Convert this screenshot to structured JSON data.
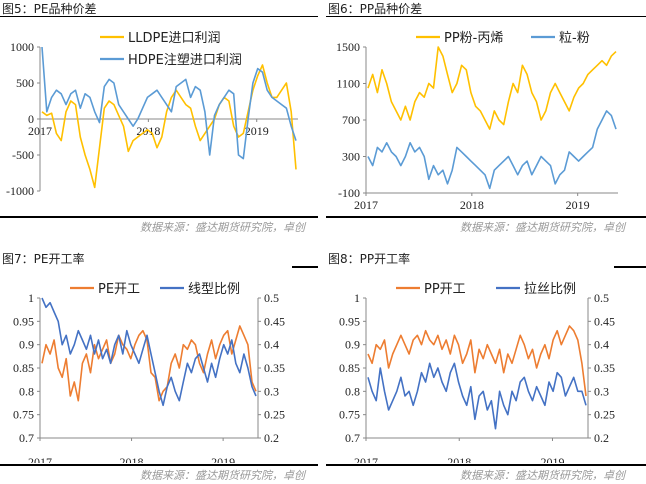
{
  "panels": [
    {
      "id": "p1",
      "title": "图5：PE品种价差",
      "source": "数据来源：盛达期货研究院，卓创",
      "chart_data": {
        "type": "line",
        "ylim": [
          -1000,
          1000
        ],
        "yticks": [
          -1000,
          -500,
          0,
          500,
          1000
        ],
        "years": [
          "2017",
          "2018",
          "2019"
        ],
        "series": [
          {
            "name": "LLDPE进口利润",
            "color": "#FFC000",
            "values": [
              100,
              50,
              80,
              -200,
              -300,
              100,
              250,
              200,
              -250,
              -500,
              -700,
              -950,
              -400,
              150,
              250,
              200,
              50,
              -100,
              -450,
              -300,
              -250,
              -200,
              -150,
              -200,
              -400,
              -250,
              100,
              300,
              400,
              300,
              200,
              150,
              -100,
              -300,
              -200,
              -100,
              0,
              200,
              300,
              250,
              -100,
              -250,
              -200,
              100,
              400,
              600,
              750,
              500,
              300,
              300,
              400,
              500,
              100,
              -700
            ]
          },
          {
            "name": "HDPE注塑进口利润",
            "color": "#5B9BD5",
            "values": [
              1000,
              100,
              300,
              400,
              350,
              200,
              350,
              400,
              150,
              350,
              300,
              100,
              -50,
              450,
              550,
              500,
              200,
              100,
              0,
              -100,
              0,
              150,
              300,
              350,
              400,
              300,
              200,
              100,
              450,
              500,
              550,
              300,
              450,
              400,
              100,
              -500,
              50,
              200,
              300,
              400,
              350,
              -500,
              -550,
              0,
              500,
              700,
              650,
              400,
              300,
              250,
              200,
              150,
              -100,
              -300
            ]
          }
        ]
      }
    },
    {
      "id": "p2",
      "title": "图6：PP品种价差",
      "source": "数据来源：盛达期货研究院，卓创",
      "chart_data": {
        "type": "line",
        "ylim": [
          -100,
          1500
        ],
        "yticks": [
          -100,
          300,
          700,
          1100,
          1500
        ],
        "years": [
          "2017",
          "2018",
          "2019"
        ],
        "series": [
          {
            "name": "PP粉-丙烯",
            "color": "#FFC000",
            "values": [
              1050,
              1200,
              1000,
              1250,
              1100,
              900,
              800,
              700,
              850,
              700,
              900,
              1000,
              950,
              1100,
              1050,
              1500,
              1400,
              1200,
              1000,
              1100,
              1300,
              1250,
              1000,
              850,
              800,
              700,
              600,
              800,
              700,
              650,
              900,
              1100,
              1000,
              1300,
              1200,
              1000,
              900,
              700,
              800,
              1000,
              1100,
              1000,
              900,
              800,
              950,
              1050,
              1100,
              1200,
              1250,
              1300,
              1350,
              1300,
              1400,
              1450
            ]
          },
          {
            "name": "粒-粉",
            "color": "#5B9BD5",
            "values": [
              300,
              200,
              400,
              350,
              450,
              350,
              300,
              200,
              300,
              450,
              350,
              400,
              300,
              50,
              200,
              100,
              150,
              0,
              150,
              400,
              350,
              300,
              250,
              200,
              150,
              100,
              -50,
              150,
              200,
              250,
              300,
              200,
              100,
              200,
              250,
              100,
              200,
              300,
              250,
              200,
              0,
              100,
              150,
              350,
              300,
              250,
              300,
              350,
              400,
              600,
              700,
              800,
              750,
              600
            ]
          }
        ]
      }
    },
    {
      "id": "p3",
      "title": "图7：PE开工率",
      "source": "数据来源：盛达期货研究院，卓创",
      "chart_data": {
        "type": "line",
        "ylim": [
          0.7,
          1
        ],
        "yticks": [
          0.7,
          0.75,
          0.8,
          0.85,
          0.9,
          0.95,
          1
        ],
        "y2lim": [
          0.2,
          0.5
        ],
        "y2ticks": [
          0.2,
          0.25,
          0.3,
          0.35,
          0.4,
          0.45,
          0.5
        ],
        "years": [
          "2017",
          "2018",
          "2019"
        ],
        "series": [
          {
            "name": "PE开工",
            "color": "#ED7D31",
            "axis": "left",
            "values": [
              0.86,
              0.9,
              0.88,
              0.91,
              0.85,
              0.83,
              0.87,
              0.79,
              0.82,
              0.78,
              0.86,
              0.88,
              0.84,
              0.9,
              0.87,
              0.89,
              0.91,
              0.86,
              0.88,
              0.92,
              0.9,
              0.89,
              0.87,
              0.9,
              0.92,
              0.93,
              0.91,
              0.84,
              0.83,
              0.78,
              0.8,
              0.81,
              0.86,
              0.88,
              0.85,
              0.9,
              0.89,
              0.91,
              0.9,
              0.86,
              0.84,
              0.88,
              0.91,
              0.87,
              0.9,
              0.92,
              0.93,
              0.88,
              0.91,
              0.94,
              0.92,
              0.9,
              0.82,
              0.8
            ]
          },
          {
            "name": "线型比例",
            "color": "#4472C4",
            "axis": "right",
            "values": [
              0.5,
              0.48,
              0.49,
              0.47,
              0.45,
              0.4,
              0.42,
              0.38,
              0.4,
              0.43,
              0.41,
              0.39,
              0.42,
              0.38,
              0.41,
              0.37,
              0.39,
              0.36,
              0.4,
              0.42,
              0.38,
              0.43,
              0.4,
              0.38,
              0.36,
              0.39,
              0.42,
              0.38,
              0.34,
              0.3,
              0.27,
              0.31,
              0.33,
              0.3,
              0.28,
              0.32,
              0.36,
              0.34,
              0.37,
              0.38,
              0.35,
              0.32,
              0.36,
              0.33,
              0.37,
              0.4,
              0.38,
              0.41,
              0.36,
              0.34,
              0.38,
              0.35,
              0.31,
              0.29
            ]
          }
        ]
      }
    },
    {
      "id": "p4",
      "title": "图8：PP开工率",
      "source": "数据来源：盛达期货研究院，卓创",
      "chart_data": {
        "type": "line",
        "ylim": [
          0.7,
          1
        ],
        "yticks": [
          0.7,
          0.75,
          0.8,
          0.85,
          0.9,
          0.95,
          1
        ],
        "y2lim": [
          0.2,
          0.5
        ],
        "y2ticks": [
          0.2,
          0.25,
          0.3,
          0.35,
          0.4,
          0.45,
          0.5
        ],
        "years": [
          "2017",
          "2018",
          "2019"
        ],
        "series": [
          {
            "name": "PP开工",
            "color": "#ED7D31",
            "axis": "left",
            "values": [
              0.88,
              0.86,
              0.9,
              0.89,
              0.91,
              0.85,
              0.88,
              0.9,
              0.92,
              0.9,
              0.88,
              0.91,
              0.92,
              0.9,
              0.93,
              0.91,
              0.9,
              0.92,
              0.89,
              0.91,
              0.88,
              0.92,
              0.9,
              0.86,
              0.88,
              0.91,
              0.84,
              0.89,
              0.87,
              0.9,
              0.88,
              0.86,
              0.89,
              0.84,
              0.88,
              0.86,
              0.89,
              0.92,
              0.9,
              0.87,
              0.89,
              0.85,
              0.88,
              0.9,
              0.87,
              0.91,
              0.93,
              0.9,
              0.92,
              0.94,
              0.93,
              0.91,
              0.86,
              0.79
            ]
          },
          {
            "name": "拉丝比例",
            "color": "#4472C4",
            "axis": "right",
            "values": [
              0.33,
              0.3,
              0.28,
              0.35,
              0.3,
              0.26,
              0.28,
              0.3,
              0.33,
              0.29,
              0.3,
              0.27,
              0.3,
              0.34,
              0.32,
              0.36,
              0.33,
              0.35,
              0.32,
              0.3,
              0.34,
              0.36,
              0.32,
              0.29,
              0.27,
              0.31,
              0.24,
              0.29,
              0.3,
              0.26,
              0.28,
              0.22,
              0.3,
              0.27,
              0.25,
              0.3,
              0.28,
              0.32,
              0.33,
              0.3,
              0.28,
              0.31,
              0.29,
              0.27,
              0.32,
              0.3,
              0.34,
              0.33,
              0.29,
              0.31,
              0.33,
              0.3,
              0.3,
              0.27
            ]
          }
        ]
      }
    }
  ]
}
